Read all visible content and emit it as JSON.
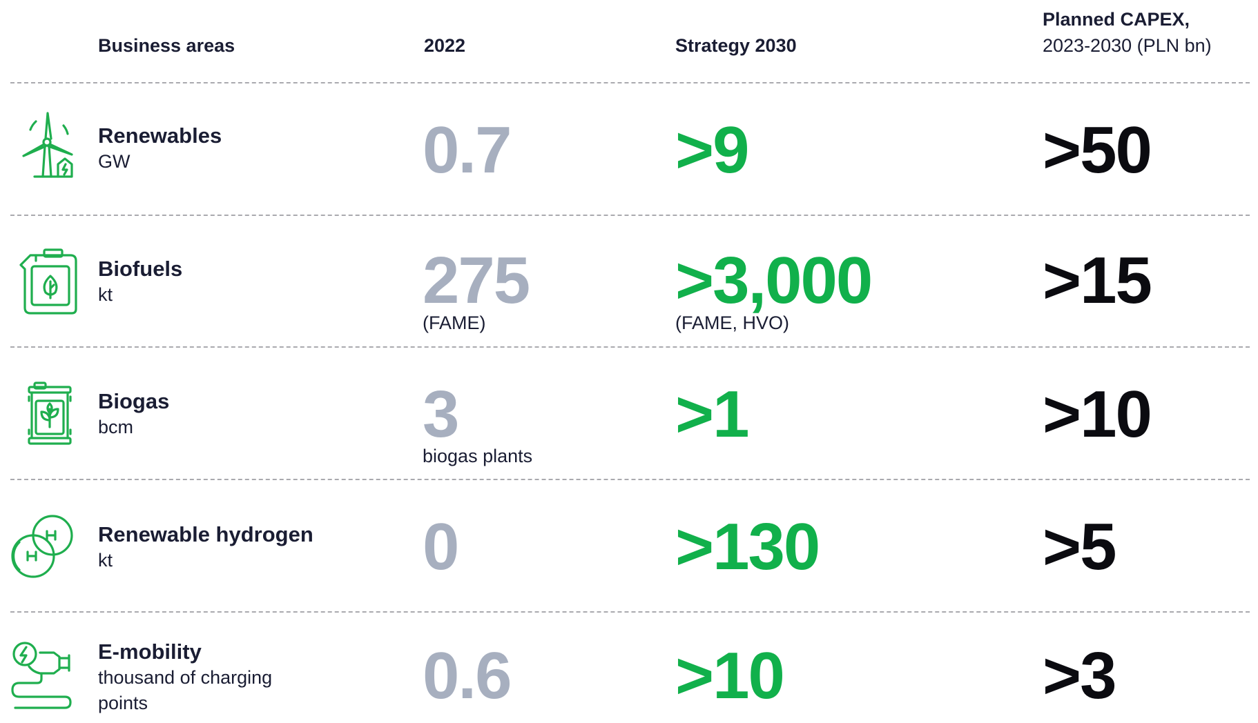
{
  "header": {
    "business_areas": "Business areas",
    "year_2022": "2022",
    "strategy_2030": "Strategy 2030",
    "capex_line1": "Planned CAPEX,",
    "capex_line2": "2023-2030 (PLN bn)"
  },
  "rows": [
    {
      "name": "Renewables",
      "unit": "GW",
      "icon": "wind-turbine-icon",
      "value_2022": "0.7",
      "note_2022": "",
      "value_2030": ">9",
      "note_2030": "",
      "capex": ">50"
    },
    {
      "name": "Biofuels",
      "unit": "kt",
      "icon": "fuel-canister-icon",
      "value_2022": "275",
      "note_2022": "(FAME)",
      "value_2030": ">3,000",
      "note_2030": "(FAME, HVO)",
      "capex": ">15"
    },
    {
      "name": "Biogas",
      "unit": "bcm",
      "icon": "biogas-barrel-icon",
      "value_2022": "3",
      "note_2022": "biogas plants",
      "value_2030": ">1",
      "note_2030": "",
      "capex": ">10"
    },
    {
      "name": "Renewable hydrogen",
      "unit": "kt",
      "icon": "hydrogen-molecule-icon",
      "value_2022": "0",
      "note_2022": "",
      "value_2030": ">130",
      "note_2030": "",
      "capex": ">5"
    },
    {
      "name": "E-mobility",
      "unit": "thousand of charging points",
      "icon": "ev-charger-plug-icon",
      "value_2022": "0.6",
      "note_2022": "",
      "value_2030": ">10",
      "note_2030": "",
      "capex": ">3"
    }
  ],
  "colors": {
    "icon_green": "#1fae4e",
    "value_2022": "#a7afbf",
    "value_2030": "#11b04b",
    "value_capex": "#0b0b10",
    "divider": "#a9a9ae"
  }
}
